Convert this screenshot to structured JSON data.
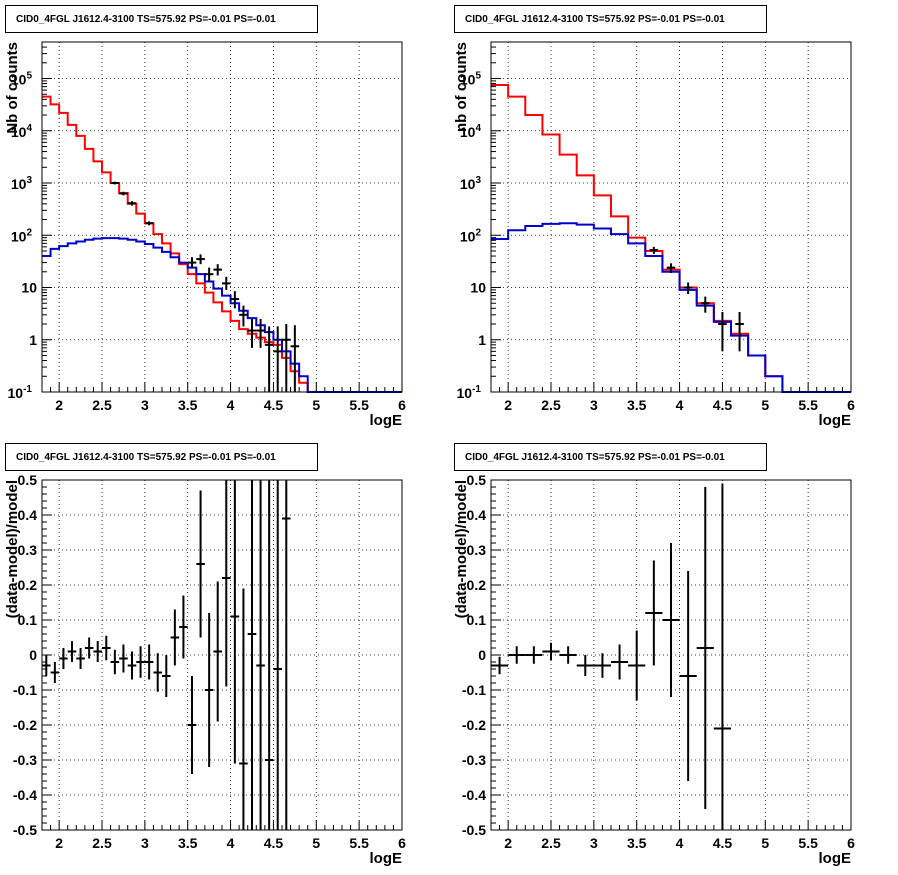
{
  "chart_data": [
    {
      "type": "line",
      "title": "CID0_4FGL J1612.4-3100 TS=575.92 PS=-0.01 PS=-0.01",
      "xlabel": "logE",
      "ylabel": "Nb of counts",
      "xlim": [
        1.8,
        6.0
      ],
      "ylim": [
        0.1,
        500000
      ],
      "yscale": "log",
      "grid": true,
      "xticks": [
        "2",
        "2.5",
        "3",
        "3.5",
        "4",
        "4.5",
        "5",
        "5.5",
        "6"
      ],
      "yticks": [
        "10^-1",
        "1",
        "10",
        "10^2",
        "10^3",
        "10^4",
        "10^5"
      ],
      "series": [
        {
          "style": "step",
          "color": "#ff0000",
          "bin_edges": [
            1.8,
            1.9,
            2.0,
            2.1,
            2.2,
            2.3,
            2.4,
            2.5,
            2.6,
            2.7,
            2.8,
            2.9,
            3.0,
            3.1,
            3.2,
            3.3,
            3.4,
            3.5,
            3.6,
            3.7,
            3.8,
            3.9,
            4.0,
            4.1,
            4.2,
            4.3,
            4.4,
            4.5,
            4.6,
            4.7,
            4.8,
            4.9,
            5.0,
            5.1,
            5.2,
            5.3,
            5.4,
            5.5,
            5.6,
            5.7,
            5.8,
            5.9,
            6.0
          ],
          "values": [
            45000,
            32000,
            22000,
            13000,
            8000,
            4500,
            2600,
            1600,
            1000,
            640,
            400,
            260,
            170,
            105,
            70,
            45,
            28,
            18,
            12,
            8,
            5.2,
            3.5,
            2.3,
            1.6,
            1.3,
            1.1,
            0.9,
            0.8,
            0.45,
            0.25,
            0.15,
            0.1,
            0.1,
            0.1,
            0.1,
            0.1,
            0.1,
            0.1,
            0.1,
            0.1,
            0.1,
            0.1
          ]
        },
        {
          "style": "step",
          "color": "#0000cc",
          "bin_edges": [
            1.8,
            1.9,
            2.0,
            2.1,
            2.2,
            2.3,
            2.4,
            2.5,
            2.6,
            2.7,
            2.8,
            2.9,
            3.0,
            3.1,
            3.2,
            3.3,
            3.4,
            3.5,
            3.6,
            3.7,
            3.8,
            3.9,
            4.0,
            4.1,
            4.2,
            4.3,
            4.4,
            4.5,
            4.6,
            4.7,
            4.8,
            4.9,
            5.0,
            5.1,
            5.2,
            5.3,
            5.4,
            5.5,
            5.6,
            5.7,
            5.8,
            5.9,
            6.0
          ],
          "values": [
            40,
            55,
            62,
            70,
            76,
            82,
            86,
            88,
            88,
            86,
            82,
            76,
            68,
            58,
            48,
            38,
            30,
            24,
            18,
            13,
            9.5,
            7,
            5,
            3.6,
            2.6,
            1.9,
            1.4,
            1.0,
            0.6,
            0.35,
            0.2,
            0.1,
            0.1,
            0.1,
            0.1,
            0.1,
            0.1,
            0.1,
            0.1,
            0.1,
            0.1,
            0.1
          ]
        },
        {
          "style": "errorbar",
          "color": "#000000",
          "x": [
            2.65,
            2.75,
            2.85,
            3.05,
            3.55,
            3.65,
            3.75,
            3.85,
            3.95,
            4.05,
            4.15,
            4.25,
            4.35,
            4.45,
            4.55,
            4.65,
            4.75
          ],
          "y": [
            1000,
            630,
            410,
            170,
            30,
            35,
            18,
            22,
            12,
            6,
            3,
            1.5,
            1.5,
            0.8,
            0.6,
            1,
            0.75
          ],
          "ylow": [
            940,
            580,
            370,
            155,
            24,
            28,
            13,
            17,
            9,
            4,
            1.8,
            0.7,
            0.7,
            0.1,
            0.1,
            0.1,
            0.1
          ],
          "yhigh": [
            1060,
            680,
            450,
            185,
            38,
            43,
            24,
            28,
            16,
            8.5,
            4.5,
            2.5,
            2.5,
            1.8,
            1.8,
            2,
            1.9
          ]
        }
      ]
    },
    {
      "type": "line",
      "title": "CID0_4FGL J1612.4-3100 TS=575.92 PS=-0.01 PS=-0.01",
      "xlabel": "logE",
      "ylabel": "nb of counts",
      "xlim": [
        1.8,
        6.0
      ],
      "ylim": [
        0.1,
        500000
      ],
      "yscale": "log",
      "grid": true,
      "xticks": [
        "2",
        "2.5",
        "3",
        "3.5",
        "4",
        "4.5",
        "5",
        "5.5",
        "6"
      ],
      "yticks": [
        "10^-1",
        "1",
        "10",
        "10^2",
        "10^3",
        "10^4",
        "10^5"
      ],
      "series": [
        {
          "style": "step",
          "color": "#ff0000",
          "bin_edges": [
            1.8,
            2.0,
            2.2,
            2.4,
            2.6,
            2.8,
            3.0,
            3.2,
            3.4,
            3.6,
            3.8,
            4.0,
            4.2,
            4.4,
            4.6,
            4.8,
            5.0,
            5.2,
            5.4,
            5.6,
            5.8,
            6.0
          ],
          "values": [
            75000,
            45000,
            20000,
            8500,
            3500,
            1400,
            580,
            230,
            90,
            50,
            22,
            10,
            5,
            2.3,
            1.3,
            0.5,
            0.2,
            0.1,
            0.1,
            0.1,
            0.1
          ]
        },
        {
          "style": "step",
          "color": "#0000cc",
          "bin_edges": [
            1.8,
            2.0,
            2.2,
            2.4,
            2.6,
            2.8,
            3.0,
            3.2,
            3.4,
            3.6,
            3.8,
            4.0,
            4.2,
            4.4,
            4.6,
            4.8,
            5.0,
            5.2,
            5.4,
            5.6,
            5.8,
            6.0
          ],
          "values": [
            85,
            125,
            150,
            165,
            170,
            160,
            135,
            105,
            70,
            40,
            20,
            9,
            4.5,
            2.2,
            1.2,
            0.5,
            0.2,
            0.1,
            0.1,
            0.1,
            0.1
          ]
        },
        {
          "style": "errorbar",
          "color": "#000000",
          "x": [
            3.7,
            3.9,
            4.1,
            4.3,
            4.5,
            4.7
          ],
          "y": [
            52,
            24,
            10,
            5,
            2,
            2
          ],
          "ylow": [
            44,
            19,
            7.5,
            3.3,
            0.6,
            0.6
          ],
          "yhigh": [
            60,
            29,
            12.5,
            6.7,
            3.4,
            3.4
          ]
        }
      ]
    },
    {
      "type": "scatter",
      "title": "CID0_4FGL J1612.4-3100 TS=575.92 PS=-0.01 PS=-0.01",
      "xlabel": "logE",
      "ylabel": "(data-model)/model",
      "xlim": [
        1.8,
        6.0
      ],
      "ylim": [
        -0.5,
        0.5
      ],
      "grid": true,
      "xticks": [
        "2",
        "2.5",
        "3",
        "3.5",
        "4",
        "4.5",
        "5",
        "5.5",
        "6"
      ],
      "yticks": [
        "-0.5",
        "-0.4",
        "-0.3",
        "-0.2",
        "-0.1",
        "0",
        "0.1",
        "0.2",
        "0.3",
        "0.4",
        "0.5"
      ],
      "series": [
        {
          "style": "errorbar",
          "color": "#000000",
          "xerr": 0.05,
          "x": [
            1.85,
            1.95,
            2.05,
            2.15,
            2.25,
            2.35,
            2.45,
            2.55,
            2.65,
            2.75,
            2.85,
            2.95,
            3.05,
            3.15,
            3.25,
            3.35,
            3.45,
            3.55,
            3.65,
            3.75,
            3.85,
            3.95,
            4.05,
            4.15,
            4.25,
            4.35,
            4.45,
            4.55,
            4.65
          ],
          "y": [
            -0.03,
            -0.05,
            -0.01,
            0.01,
            -0.01,
            0.02,
            0.01,
            0.02,
            -0.02,
            -0.01,
            -0.03,
            -0.02,
            -0.02,
            -0.05,
            -0.06,
            0.05,
            0.08,
            -0.2,
            0.26,
            -0.1,
            0.01,
            0.22,
            0.11,
            -0.31,
            0.06,
            -0.03,
            -0.3,
            -0.04,
            0.39
          ],
          "err": [
            0.03,
            0.03,
            0.03,
            0.03,
            0.03,
            0.03,
            0.03,
            0.035,
            0.035,
            0.04,
            0.04,
            0.045,
            0.05,
            0.055,
            0.06,
            0.08,
            0.09,
            0.14,
            0.21,
            0.22,
            0.2,
            0.31,
            0.42,
            0.5,
            0.6,
            0.7,
            0.8,
            0.9,
            1.0
          ]
        }
      ]
    },
    {
      "type": "scatter",
      "title": "CID0_4FGL J1612.4-3100 TS=575.92 PS=-0.01 PS=-0.01",
      "xlabel": "logE",
      "ylabel": "(data-model)/model",
      "xlim": [
        1.8,
        6.0
      ],
      "ylim": [
        -0.5,
        0.5
      ],
      "grid": true,
      "xticks": [
        "2",
        "2.5",
        "3",
        "3.5",
        "4",
        "4.5",
        "5",
        "5.5",
        "6"
      ],
      "yticks": [
        "-0.5",
        "-0.4",
        "-0.3",
        "-0.2",
        "-0.1",
        "0",
        "0.1",
        "0.2",
        "0.3",
        "0.4",
        "0.5"
      ],
      "series": [
        {
          "style": "errorbar",
          "color": "#000000",
          "xerr": 0.1,
          "x": [
            1.9,
            2.1,
            2.3,
            2.5,
            2.7,
            2.9,
            3.1,
            3.3,
            3.5,
            3.7,
            3.9,
            4.1,
            4.3,
            4.5
          ],
          "y": [
            -0.03,
            0.0,
            0.0,
            0.01,
            0.0,
            -0.03,
            -0.03,
            -0.02,
            -0.03,
            0.12,
            0.1,
            -0.06,
            0.02,
            -0.21
          ],
          "err": [
            0.025,
            0.025,
            0.025,
            0.025,
            0.025,
            0.03,
            0.035,
            0.05,
            0.1,
            0.15,
            0.22,
            0.3,
            0.46,
            0.7
          ]
        }
      ]
    }
  ]
}
